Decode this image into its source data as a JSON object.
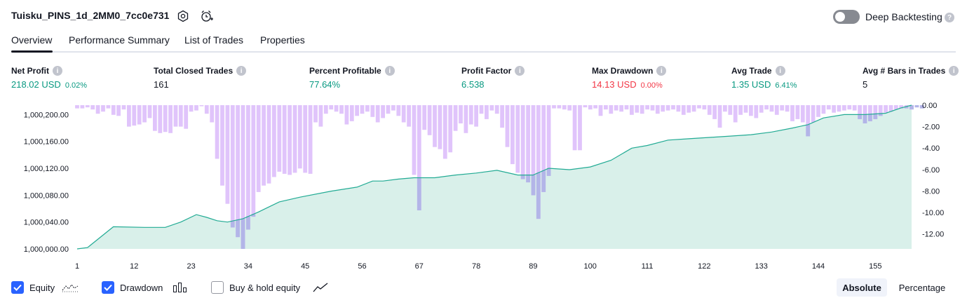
{
  "header": {
    "strategy_name": "Tuisku_PINS_1d_2MM0_7cc0e731",
    "deep_backtesting_label": "Deep Backtesting",
    "deep_backtesting_on": false
  },
  "tabs": [
    {
      "label": "Overview",
      "active": true
    },
    {
      "label": "Performance Summary",
      "active": false
    },
    {
      "label": "List of Trades",
      "active": false
    },
    {
      "label": "Properties",
      "active": false
    }
  ],
  "metrics": [
    {
      "label": "Net Profit",
      "value": "218.02 USD",
      "pct": "0.02%",
      "color": "green"
    },
    {
      "label": "Total Closed Trades",
      "value": "161",
      "pct": "",
      "color": "dark"
    },
    {
      "label": "Percent Profitable",
      "value": "77.64%",
      "pct": "",
      "color": "green"
    },
    {
      "label": "Profit Factor",
      "value": "6.538",
      "pct": "",
      "color": "green"
    },
    {
      "label": "Max Drawdown",
      "value": "14.13 USD",
      "pct": "0.00%",
      "color": "red"
    },
    {
      "label": "Avg Trade",
      "value": "1.35 USD",
      "pct": "6.41%",
      "color": "green"
    },
    {
      "label": "Avg # Bars in Trades",
      "value": "5",
      "pct": "",
      "color": "dark"
    }
  ],
  "legend": {
    "equity": {
      "label": "Equity",
      "checked": true
    },
    "drawdown": {
      "label": "Drawdown",
      "checked": true
    },
    "buy_hold": {
      "label": "Buy & hold equity",
      "checked": false
    },
    "absolute_label": "Absolute",
    "percentage_label": "Percentage",
    "selected_mode": "Absolute"
  },
  "colors": {
    "equity_line": "#22ab94",
    "equity_fill": "#d2ede6",
    "drawdown_bar": "#e0c4fb",
    "overlap_bar": "#b3b5e8",
    "accent": "#2962ff"
  },
  "chart_data": {
    "type": "area",
    "x_ticks": [
      "1",
      "12",
      "23",
      "34",
      "45",
      "56",
      "67",
      "78",
      "89",
      "100",
      "111",
      "122",
      "133",
      "144",
      "155"
    ],
    "left_axis_ticks": [
      "1,000,200.00",
      "1,000,160.00",
      "1,000,120.00",
      "1,000,080.00",
      "1,000,040.00",
      "1,000,000.00"
    ],
    "right_axis_ticks": [
      "0.00",
      "-2.00",
      "-4.00",
      "-6.00",
      "-8.00",
      "-10.00",
      "-12.00"
    ],
    "equity_ylim": [
      1000000,
      1000214
    ],
    "drawdown_ylim": [
      -13.4,
      0
    ],
    "xlim": [
      1,
      162
    ],
    "series": [
      {
        "name": "Equity",
        "x": [
          1,
          3,
          8,
          14,
          18,
          21,
          24,
          26,
          28,
          30,
          33,
          36,
          40,
          44,
          50,
          55,
          58,
          60,
          63,
          66,
          70,
          74,
          78,
          82,
          86,
          89,
          92,
          96,
          100,
          104,
          108,
          111,
          115,
          119,
          123,
          127,
          131,
          135,
          139,
          142,
          145,
          149,
          153,
          157,
          160,
          162
        ],
        "values": [
          1000000,
          1000002,
          1000033,
          1000032,
          1000032,
          1000040,
          1000051,
          1000047,
          1000042,
          1000040,
          1000045,
          1000055,
          1000070,
          1000077,
          1000086,
          1000092,
          1000101,
          1000101,
          1000104,
          1000106,
          1000106,
          1000110,
          1000113,
          1000117,
          1000110,
          1000110,
          1000120,
          1000118,
          1000122,
          1000132,
          1000150,
          1000154,
          1000162,
          1000164,
          1000166,
          1000168,
          1000170,
          1000174,
          1000180,
          1000185,
          1000195,
          1000200,
          1000200,
          1000202,
          1000210,
          1000214
        ]
      },
      {
        "name": "Drawdown",
        "values": [
          -0.3,
          -0.3,
          -0.2,
          -0.4,
          -0.8,
          -0.6,
          -0.3,
          -0.9,
          -1.0,
          -0.4,
          -2.0,
          -1.9,
          -1.8,
          -1.6,
          -1.2,
          -2.4,
          -2.6,
          -2.5,
          -2.6,
          -2.0,
          -2.0,
          -2.2,
          -0.6,
          -0.5,
          -0.1,
          -0.8,
          -1.6,
          -5.0,
          -7.5,
          -9.2,
          -11.4,
          -12.3,
          -13.4,
          -11.6,
          -10.4,
          -8.1,
          -7.5,
          -7.3,
          -6.7,
          -6.2,
          -6.4,
          -6.5,
          -6.3,
          -5.9,
          -6.3,
          -6.4,
          -1.6,
          -2.0,
          -0.8,
          -0.4,
          -0.6,
          -0.8,
          -1.8,
          -1.5,
          -1.0,
          -0.8,
          -0.6,
          -1.1,
          -1.6,
          -1.2,
          -0.8,
          -0.5,
          -1.0,
          -1.6,
          -2.0,
          -6.5,
          -9.8,
          -2.3,
          -2.8,
          -3.9,
          -4.1,
          -5.0,
          -4.4,
          -2.4,
          -1.7,
          -2.6,
          -1.8,
          -2.0,
          -0.8,
          -1.3,
          -0.5,
          -0.8,
          -2.1,
          -3.9,
          -5.5,
          -6.3,
          -6.9,
          -7.2,
          -8.4,
          -10.6,
          -8.1,
          -6.6,
          -0.3,
          -0.3,
          -0.4,
          -0.5,
          -4.2,
          -4.2,
          -0.2,
          -0.4,
          -0.3,
          -1.0,
          -0.4,
          -0.8,
          -0.5,
          -0.6,
          -0.4,
          -0.9,
          -0.7,
          -0.8,
          -0.4,
          -0.5,
          -0.8,
          -0.6,
          -0.5,
          -0.4,
          -0.6,
          -0.9,
          -0.7,
          -0.6,
          -0.3,
          -0.4,
          -0.9,
          -1.3,
          -2.1,
          -0.6,
          -0.9,
          -1.6,
          -0.9,
          -0.7,
          -1.0,
          -1.2,
          -0.7,
          -0.4,
          -0.6,
          -0.9,
          -0.5,
          -0.6,
          -1.5,
          -1.3,
          -1.6,
          -2.9,
          -1.6,
          -1.1,
          -0.8,
          -0.4,
          -0.7,
          -0.6,
          -0.5,
          -0.4,
          -0.5,
          -1.3,
          -1.7,
          -1.5,
          -1.3,
          -1.0,
          -0.7,
          -0.6,
          -0.4,
          -0.3,
          -0.3,
          -0.4,
          -0.2,
          -0.3
        ]
      }
    ]
  }
}
